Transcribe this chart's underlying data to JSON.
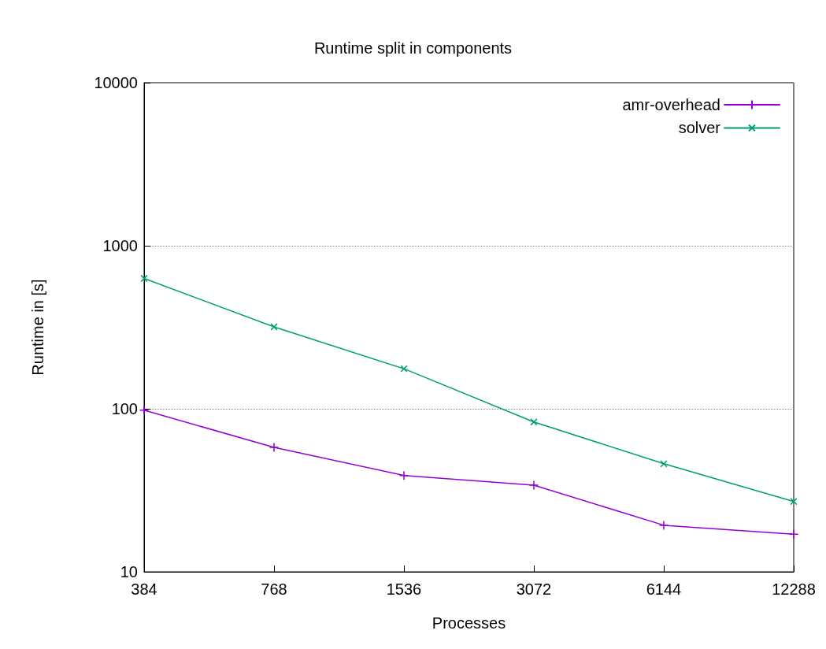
{
  "chart_data": {
    "type": "line",
    "title": "Runtime split in components",
    "xlabel": "Processes",
    "ylabel": "Runtime in [s]",
    "categories": [
      "384",
      "768",
      "1536",
      "3072",
      "6144",
      "12288"
    ],
    "series": [
      {
        "name": "amr-overhead",
        "color": "#9400d3",
        "values": [
          98,
          58,
          39,
          34,
          19.3,
          17
        ]
      },
      {
        "name": "solver",
        "color": "#009e73",
        "values": [
          630,
          318,
          176,
          83,
          46,
          27
        ]
      }
    ],
    "log": "y",
    "ylim": [
      10,
      10000
    ],
    "yticks": [
      10,
      100,
      1000,
      10000
    ],
    "grid": "y",
    "legend": "top right",
    "marker": "cross",
    "line_style": "solid"
  }
}
